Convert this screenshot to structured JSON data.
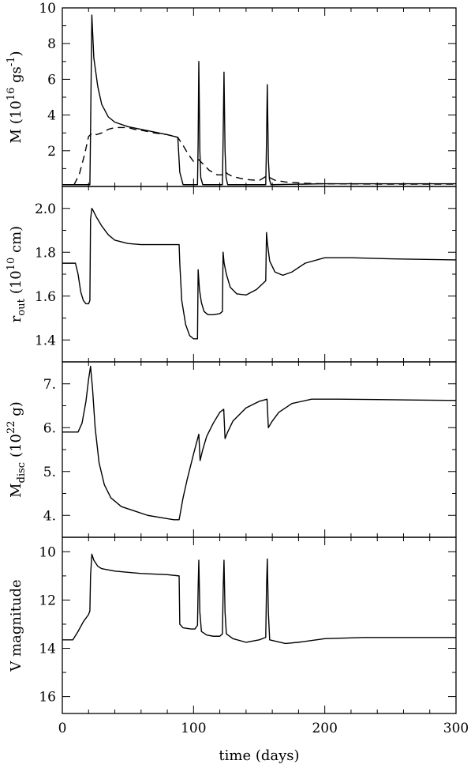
{
  "chart_data": [
    {
      "type": "line",
      "panel": "mdot",
      "ylabel_main": "M",
      "ylabel_unit_pre": "(10",
      "ylabel_exp": "16",
      "ylabel_unit_mid": " gs",
      "ylabel_exp2": "-1",
      "ylabel_unit_post": ")",
      "xlim": [
        0,
        300
      ],
      "ylim": [
        0,
        10
      ],
      "yticks": [
        2,
        4,
        6,
        8,
        10
      ],
      "series": [
        {
          "style": "solid",
          "x": [
            0,
            21,
            21.5,
            22.5,
            24,
            27,
            30,
            35,
            40,
            50,
            60,
            70,
            80,
            88,
            89.5,
            92,
            103,
            103.5,
            104,
            104.8,
            105.5,
            107,
            122,
            122.6,
            123.2,
            124,
            124.8,
            126,
            155,
            155.6,
            156.2,
            157,
            157.8,
            159,
            200,
            300
          ],
          "y": [
            0.1,
            0.1,
            3.0,
            9.6,
            7.2,
            5.6,
            4.6,
            3.9,
            3.6,
            3.35,
            3.2,
            3.05,
            2.9,
            2.75,
            0.8,
            0.1,
            0.1,
            2.5,
            7.0,
            2.0,
            0.5,
            0.1,
            0.1,
            3.0,
            6.4,
            2.0,
            0.5,
            0.1,
            0.1,
            2.5,
            5.7,
            1.5,
            0.4,
            0.1,
            0.15,
            0.15
          ]
        },
        {
          "style": "dashed",
          "x": [
            9,
            13,
            17,
            20,
            23,
            26,
            30,
            35,
            40,
            45,
            50,
            55,
            60,
            70,
            80,
            88,
            92,
            96,
            100,
            104,
            108,
            112,
            118,
            122,
            124,
            126,
            130,
            136,
            142,
            150,
            156,
            158,
            162,
            170,
            185,
            200,
            250,
            300
          ],
          "y": [
            0.1,
            0.7,
            1.8,
            2.8,
            3.0,
            2.9,
            3.0,
            3.2,
            3.3,
            3.3,
            3.3,
            3.2,
            3.15,
            3.0,
            2.9,
            2.75,
            2.3,
            1.8,
            1.4,
            1.5,
            1.2,
            0.9,
            0.65,
            0.65,
            0.85,
            0.7,
            0.55,
            0.45,
            0.38,
            0.33,
            0.6,
            0.5,
            0.35,
            0.25,
            0.18,
            0.15,
            0.13,
            0.13
          ]
        }
      ]
    },
    {
      "type": "line",
      "panel": "rout",
      "ylabel_main": "r",
      "ylabel_sub": "out",
      "ylabel_unit_pre": "(10",
      "ylabel_exp": "10",
      "ylabel_unit_post": " cm)",
      "xlim": [
        0,
        300
      ],
      "ylim": [
        1.3,
        2.1
      ],
      "yticks": [
        "1.4",
        "1.6",
        "1.8",
        "2.0"
      ],
      "series": [
        {
          "style": "solid",
          "x": [
            0,
            10,
            12,
            14,
            16,
            18,
            20,
            21,
            21.5,
            22.5,
            23.5,
            26,
            30,
            35,
            40,
            50,
            60,
            70,
            80,
            89,
            89.5,
            91,
            94,
            97,
            100,
            102,
            103,
            103.5,
            104.5,
            106,
            108,
            111,
            115,
            120,
            122,
            122.5,
            123.3,
            125,
            128,
            133,
            140,
            148,
            155,
            155.6,
            156.3,
            158,
            162,
            168,
            175,
            185,
            200,
            220,
            250,
            300
          ],
          "y": [
            1.75,
            1.75,
            1.7,
            1.62,
            1.58,
            1.565,
            1.565,
            1.58,
            1.95,
            2.0,
            1.99,
            1.96,
            1.92,
            1.88,
            1.855,
            1.84,
            1.835,
            1.835,
            1.835,
            1.835,
            1.75,
            1.58,
            1.47,
            1.42,
            1.405,
            1.405,
            1.405,
            1.72,
            1.63,
            1.57,
            1.53,
            1.515,
            1.515,
            1.52,
            1.53,
            1.8,
            1.75,
            1.7,
            1.64,
            1.61,
            1.605,
            1.63,
            1.67,
            1.89,
            1.84,
            1.76,
            1.71,
            1.695,
            1.71,
            1.75,
            1.775,
            1.775,
            1.77,
            1.765
          ]
        }
      ]
    },
    {
      "type": "line",
      "panel": "mdisc",
      "ylabel_main": "M",
      "ylabel_sub": "disc",
      "ylabel_unit_pre": "(10",
      "ylabel_exp": "22",
      "ylabel_unit_post": " g)",
      "xlim": [
        0,
        300
      ],
      "ylim": [
        3.5,
        7.5
      ],
      "yticks": [
        "4.",
        "5.",
        "6.",
        "7."
      ],
      "series": [
        {
          "style": "solid",
          "x": [
            0,
            12,
            15,
            18,
            20,
            21.5,
            23,
            25,
            28,
            32,
            37,
            45,
            55,
            65,
            75,
            85,
            89,
            92,
            95,
            100,
            104,
            105,
            107,
            110,
            115,
            120,
            123,
            124,
            126,
            130,
            140,
            150,
            156,
            157,
            160,
            165,
            175,
            190,
            210,
            240,
            270,
            300
          ],
          "y": [
            5.9,
            5.9,
            6.1,
            6.6,
            7.1,
            7.4,
            6.9,
            6.0,
            5.2,
            4.7,
            4.4,
            4.2,
            4.1,
            4.0,
            3.95,
            3.9,
            3.9,
            4.4,
            4.8,
            5.4,
            5.85,
            5.25,
            5.5,
            5.8,
            6.1,
            6.35,
            6.42,
            5.75,
            5.9,
            6.15,
            6.45,
            6.6,
            6.65,
            6.0,
            6.15,
            6.35,
            6.55,
            6.65,
            6.65,
            6.64,
            6.63,
            6.62
          ]
        }
      ]
    },
    {
      "type": "line",
      "panel": "vmag",
      "ylabel_main": "V magnitude",
      "xlabel": "time (days)",
      "xlim": [
        0,
        300
      ],
      "xticks": [
        "0",
        "100",
        "200",
        "300"
      ],
      "ylim": [
        16.7,
        9.4
      ],
      "yticks": [
        "10",
        "12",
        "14",
        "16"
      ],
      "series": [
        {
          "style": "solid",
          "x": [
            0,
            8,
            12,
            16,
            20,
            21,
            21.5,
            22.5,
            24,
            27,
            30,
            40,
            60,
            80,
            89,
            89.5,
            92,
            98,
            101,
            103,
            103.5,
            104,
            104.8,
            106,
            110,
            115,
            120,
            122,
            122.6,
            123.2,
            124,
            125,
            130,
            140,
            150,
            155,
            155.6,
            156.2,
            157,
            158,
            170,
            180,
            200,
            230,
            260,
            300
          ],
          "y": [
            13.65,
            13.65,
            13.3,
            12.9,
            12.6,
            12.45,
            11.0,
            10.1,
            10.35,
            10.6,
            10.7,
            10.8,
            10.9,
            10.95,
            11.0,
            13.0,
            13.15,
            13.2,
            13.2,
            13.05,
            11.5,
            10.35,
            12.5,
            13.3,
            13.45,
            13.5,
            13.5,
            13.4,
            11.5,
            10.35,
            12.5,
            13.4,
            13.6,
            13.75,
            13.65,
            13.55,
            11.5,
            10.3,
            12.5,
            13.65,
            13.8,
            13.75,
            13.6,
            13.55,
            13.55,
            13.55
          ]
        }
      ]
    }
  ]
}
